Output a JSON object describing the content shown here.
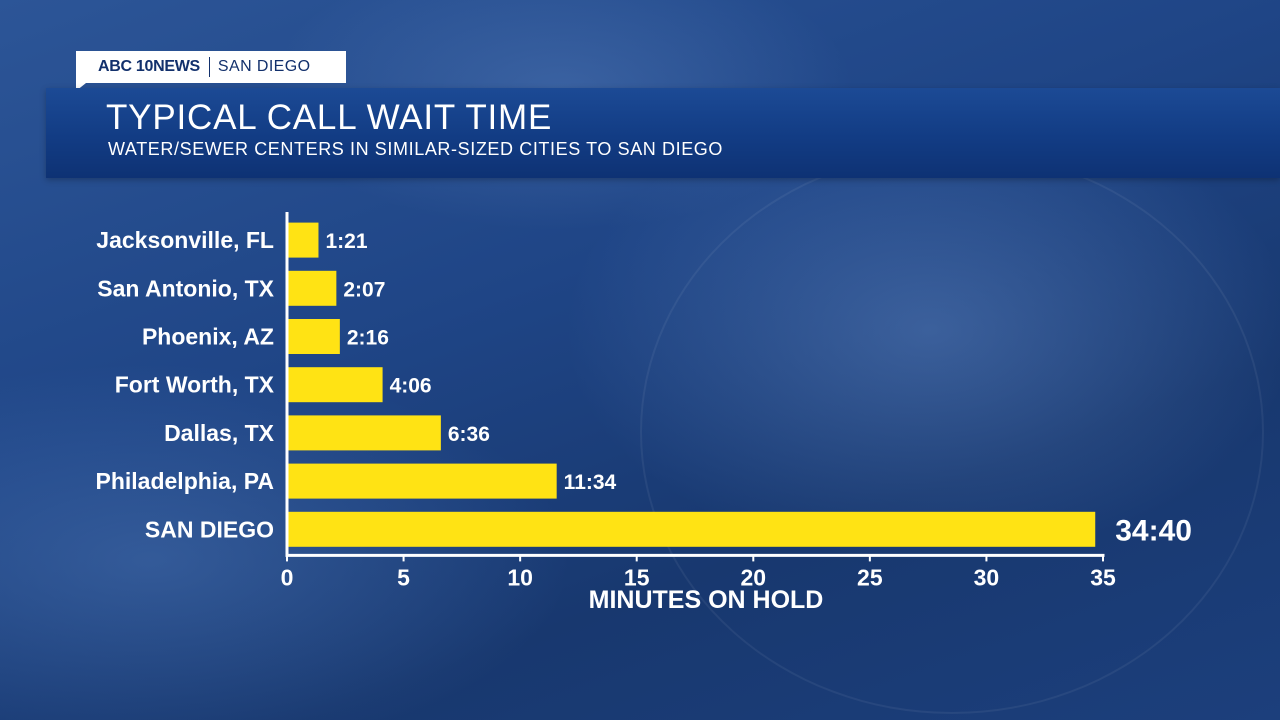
{
  "branding": {
    "logo": "ABC 10NEWS",
    "city": "SAN DIEGO"
  },
  "header": {
    "title": "TYPICAL CALL WAIT TIME",
    "subtitle": "WATER/SEWER CENTERS IN SIMILAR-SIZED CITIES TO SAN DIEGO"
  },
  "colors": {
    "bar": "#ffe314",
    "text": "#ffffff",
    "axis": "#ffffff",
    "title_bar": "#123c84"
  },
  "chart_data": {
    "type": "bar",
    "orientation": "horizontal",
    "title": "TYPICAL CALL WAIT TIME",
    "subtitle": "WATER/SEWER CENTERS IN SIMILAR-SIZED CITIES TO SAN DIEGO",
    "xlabel": "MINUTES ON HOLD",
    "ylabel": "",
    "categories": [
      "Jacksonville, FL",
      "San Antonio, TX",
      "Phoenix, AZ",
      "Fort Worth, TX",
      "Dallas, TX",
      "Philadelphia, PA",
      "SAN DIEGO"
    ],
    "values": [
      1.35,
      2.117,
      2.267,
      4.1,
      6.6,
      11.567,
      34.667
    ],
    "labels": [
      "1:21",
      "2:07",
      "2:16",
      "4:06",
      "6:36",
      "11:34",
      "34:40"
    ],
    "xlim": [
      0,
      35
    ],
    "xticks": [
      0,
      5,
      10,
      15,
      20,
      25,
      30,
      35
    ],
    "grid": false,
    "legend": "none"
  }
}
